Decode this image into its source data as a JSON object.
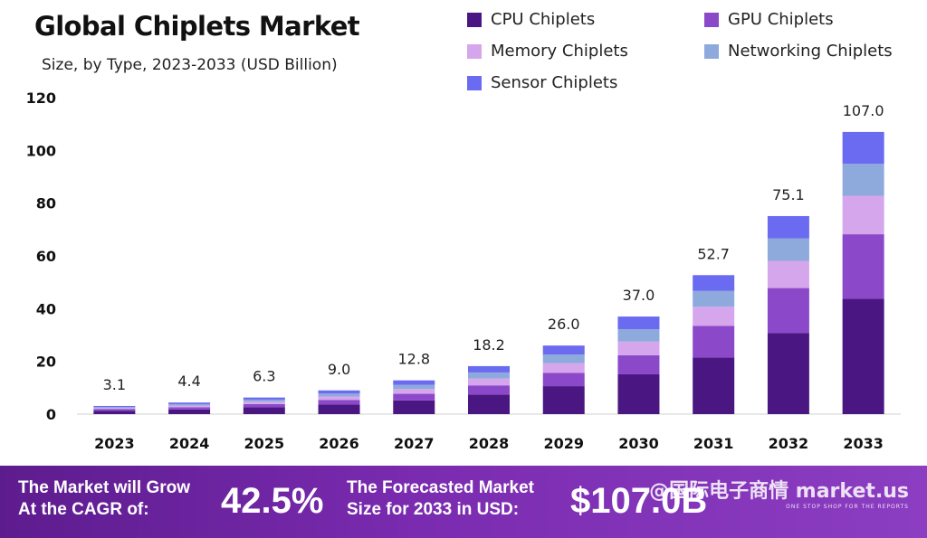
{
  "header": {
    "title": "Global Chiplets Market",
    "subtitle": "Size, by Type, 2023-2033 (USD Billion)"
  },
  "chart_data": {
    "type": "bar",
    "stacked": true,
    "categories": [
      "2023",
      "2024",
      "2025",
      "2026",
      "2027",
      "2028",
      "2029",
      "2030",
      "2031",
      "2032",
      "2033"
    ],
    "totals": [
      3.1,
      4.4,
      6.3,
      9.0,
      12.8,
      18.2,
      26.0,
      37.0,
      52.7,
      75.1,
      107.0
    ],
    "total_labels": [
      "3.1",
      "4.4",
      "6.3",
      "9.0",
      "12.8",
      "18.2",
      "26.0",
      "37.0",
      "52.7",
      "75.1",
      "107.0"
    ],
    "series": [
      {
        "name": "CPU Chiplets",
        "color": "#4a1782",
        "values": [
          1.3,
          1.8,
          2.6,
          3.7,
          5.2,
          7.4,
          10.6,
          15.1,
          21.5,
          30.7,
          43.7
        ]
      },
      {
        "name": "GPU Chiplets",
        "color": "#8b49c9",
        "values": [
          0.6,
          0.8,
          1.2,
          1.7,
          2.5,
          3.5,
          5.0,
          7.2,
          12.0,
          17.1,
          24.5
        ]
      },
      {
        "name": "Memory Chiplets",
        "color": "#d6a6ec",
        "values": [
          0.4,
          0.6,
          0.9,
          1.3,
          1.8,
          2.6,
          3.7,
          5.2,
          7.2,
          10.3,
          14.6
        ]
      },
      {
        "name": "Networking Chiplets",
        "color": "#8ea9dc",
        "values": [
          0.4,
          0.6,
          0.8,
          1.1,
          1.6,
          2.3,
          3.3,
          4.7,
          6.0,
          8.5,
          12.1
        ]
      },
      {
        "name": "Sensor Chiplets",
        "color": "#6a6bf0",
        "values": [
          0.4,
          0.6,
          0.8,
          1.2,
          1.7,
          2.4,
          3.4,
          4.8,
          6.0,
          8.5,
          12.1
        ]
      }
    ],
    "ylim": [
      0,
      120
    ],
    "yticks": [
      "0",
      "20",
      "40",
      "60",
      "80",
      "100",
      "120"
    ],
    "grid": false,
    "legend_position": "top-right"
  },
  "footer": {
    "cagr_text": "The Market will Grow\nAt the CAGR of:",
    "cagr_value": "42.5%",
    "forecast_text": "The Forecasted Market\nSize for 2033 in USD:",
    "forecast_value": "$107.0B",
    "watermark_main": "@国际电子商情 market.us",
    "watermark_tagline": "ONE STOP SHOP FOR THE REPORTS",
    "background_color": "#7a2bb0"
  }
}
